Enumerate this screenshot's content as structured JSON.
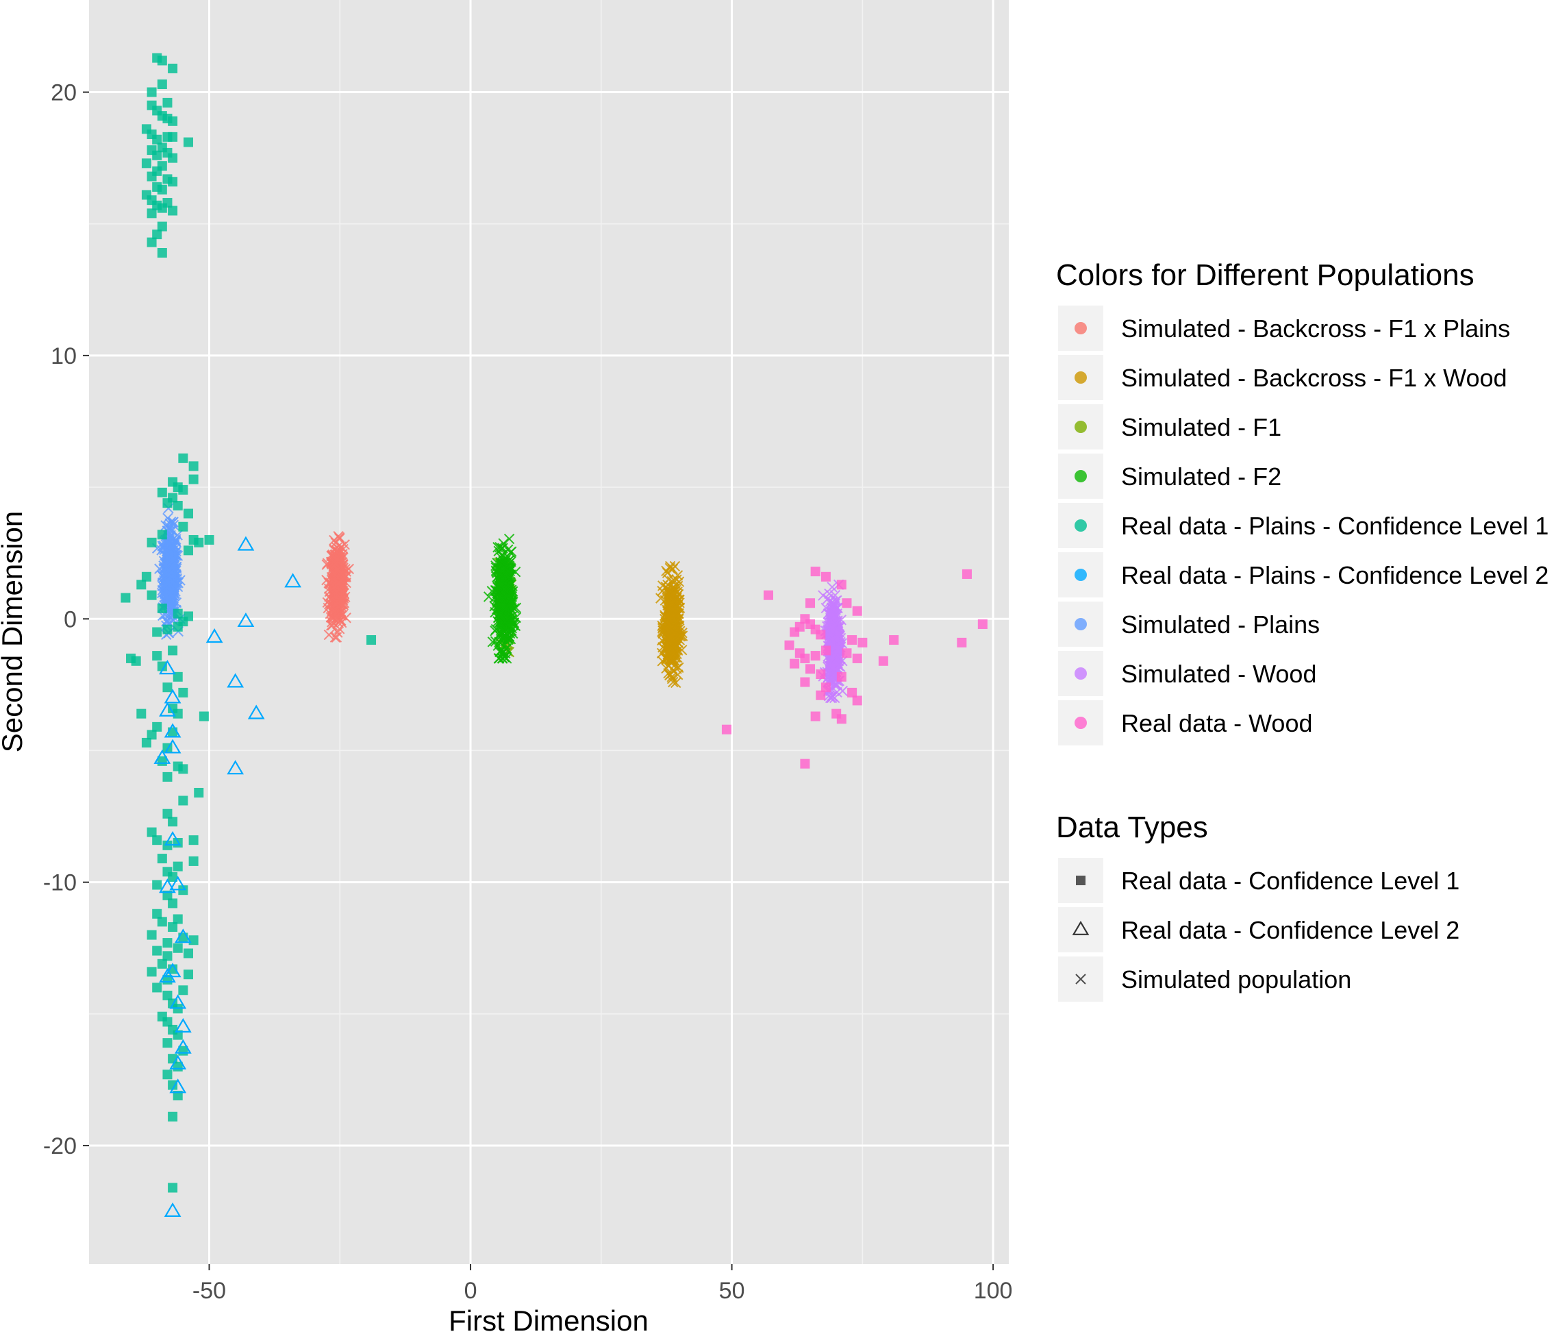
{
  "chart_data": {
    "type": "scatter",
    "xlabel": "First Dimension",
    "ylabel": "Second Dimension",
    "xlim": [
      -73,
      103
    ],
    "ylim": [
      -24.5,
      23.5
    ],
    "xticks": [
      -50,
      0,
      50,
      100
    ],
    "xtick_labels": [
      "-50",
      "0",
      "50",
      "100"
    ],
    "yticks": [
      -20,
      -10,
      0,
      10,
      20
    ],
    "ytick_labels": [
      "-20",
      "-10",
      "0",
      "10",
      "20"
    ],
    "grid": true,
    "legend_position": "right",
    "legends": {
      "color": {
        "title": "Colors for Different Populations",
        "entries": [
          {
            "label": "Simulated - Backcross - F1 x Plains",
            "color": "#F8766D"
          },
          {
            "label": "Simulated - Backcross - F1 x Wood",
            "color": "#CD9600"
          },
          {
            "label": "Simulated - F1",
            "color": "#7CAE00"
          },
          {
            "label": "Simulated - F2",
            "color": "#0CB702"
          },
          {
            "label": "Real data - Plains - Confidence Level 1",
            "color": "#00BE92"
          },
          {
            "label": "Real data - Plains - Confidence Level 2",
            "color": "#00A9FF"
          },
          {
            "label": "Simulated - Plains",
            "color": "#619CFF"
          },
          {
            "label": "Simulated - Wood",
            "color": "#C77CFF"
          },
          {
            "label": "Real data - Wood",
            "color": "#FF61CC"
          }
        ]
      },
      "shape": {
        "title": "Data Types",
        "entries": [
          {
            "label": "Real data - Confidence Level 1",
            "shape": "square"
          },
          {
            "label": "Real data - Confidence Level 2",
            "shape": "triangle"
          },
          {
            "label": "Simulated population",
            "shape": "x"
          }
        ]
      }
    },
    "series": [
      {
        "name": "Real data - Plains - Confidence Level 1",
        "color": "#00BE92",
        "shape": "square",
        "points": [
          [
            -60,
            21.3
          ],
          [
            -59,
            21.2
          ],
          [
            -57,
            20.9
          ],
          [
            -61,
            20.0
          ],
          [
            -59,
            20.3
          ],
          [
            -58,
            19.6
          ],
          [
            -61,
            19.5
          ],
          [
            -60,
            19.3
          ],
          [
            -59,
            19.1
          ],
          [
            -57,
            18.9
          ],
          [
            -58,
            19.0
          ],
          [
            -62,
            18.6
          ],
          [
            -61,
            18.4
          ],
          [
            -60,
            18.2
          ],
          [
            -58,
            18.3
          ],
          [
            -57,
            18.3
          ],
          [
            -54,
            18.1
          ],
          [
            -61,
            17.8
          ],
          [
            -60,
            17.6
          ],
          [
            -59,
            17.9
          ],
          [
            -58,
            17.7
          ],
          [
            -57,
            17.5
          ],
          [
            -62,
            17.3
          ],
          [
            -60,
            17.0
          ],
          [
            -59,
            17.2
          ],
          [
            -61,
            16.8
          ],
          [
            -58,
            16.7
          ],
          [
            -60,
            16.4
          ],
          [
            -59,
            16.3
          ],
          [
            -57,
            16.6
          ],
          [
            -62,
            16.1
          ],
          [
            -61,
            15.9
          ],
          [
            -60,
            15.7
          ],
          [
            -59,
            15.6
          ],
          [
            -57,
            15.5
          ],
          [
            -61,
            15.4
          ],
          [
            -58,
            15.8
          ],
          [
            -59,
            14.9
          ],
          [
            -60,
            14.6
          ],
          [
            -61,
            14.3
          ],
          [
            -59,
            13.9
          ],
          [
            -55,
            6.1
          ],
          [
            -53,
            5.8
          ],
          [
            -57,
            5.2
          ],
          [
            -56,
            5.0
          ],
          [
            -55,
            4.9
          ],
          [
            -59,
            4.8
          ],
          [
            -57,
            4.6
          ],
          [
            -58,
            4.4
          ],
          [
            -56,
            4.3
          ],
          [
            -53,
            5.3
          ],
          [
            -54,
            4.0
          ],
          [
            -55,
            3.5
          ],
          [
            -53,
            3.0
          ],
          [
            -52,
            2.9
          ],
          [
            -50,
            3.0
          ],
          [
            -54,
            2.6
          ],
          [
            -59,
            3.2
          ],
          [
            -61,
            2.9
          ],
          [
            -62,
            1.6
          ],
          [
            -63,
            1.3
          ],
          [
            -61,
            0.9
          ],
          [
            -66,
            0.8
          ],
          [
            -59,
            0.4
          ],
          [
            -56,
            0.2
          ],
          [
            -54,
            0.1
          ],
          [
            -55,
            -0.1
          ],
          [
            -56,
            -0.3
          ],
          [
            -58,
            -0.4
          ],
          [
            -60,
            -0.5
          ],
          [
            -65,
            -1.5
          ],
          [
            -64,
            -1.6
          ],
          [
            -60,
            -1.4
          ],
          [
            -57,
            -1.2
          ],
          [
            -59,
            -1.8
          ],
          [
            -56,
            -2.2
          ],
          [
            -58,
            -2.6
          ],
          [
            -55,
            -2.8
          ],
          [
            -57,
            -3.4
          ],
          [
            -56,
            -3.6
          ],
          [
            -63,
            -3.6
          ],
          [
            -51,
            -3.7
          ],
          [
            -60,
            -4.1
          ],
          [
            -61,
            -4.4
          ],
          [
            -62,
            -4.7
          ],
          [
            -57,
            -4.3
          ],
          [
            -58,
            -4.9
          ],
          [
            -59,
            -5.4
          ],
          [
            -56,
            -5.6
          ],
          [
            -55,
            -5.7
          ],
          [
            -58,
            -6.0
          ],
          [
            -52,
            -6.6
          ],
          [
            -55,
            -6.9
          ],
          [
            -58,
            -7.4
          ],
          [
            -57,
            -7.7
          ],
          [
            -61,
            -8.1
          ],
          [
            -60,
            -8.4
          ],
          [
            -58,
            -8.6
          ],
          [
            -56,
            -8.5
          ],
          [
            -53,
            -8.4
          ],
          [
            -59,
            -9.1
          ],
          [
            -56,
            -9.4
          ],
          [
            -58,
            -9.6
          ],
          [
            -57,
            -9.8
          ],
          [
            -53,
            -9.2
          ],
          [
            -60,
            -10.1
          ],
          [
            -58,
            -10.5
          ],
          [
            -55,
            -10.3
          ],
          [
            -57,
            -10.8
          ],
          [
            -60,
            -11.2
          ],
          [
            -59,
            -11.5
          ],
          [
            -57,
            -11.7
          ],
          [
            -56,
            -11.4
          ],
          [
            -61,
            -12.0
          ],
          [
            -58,
            -12.3
          ],
          [
            -55,
            -12.1
          ],
          [
            -53,
            -12.2
          ],
          [
            -60,
            -12.6
          ],
          [
            -58,
            -12.8
          ],
          [
            -56,
            -12.5
          ],
          [
            -54,
            -12.7
          ],
          [
            -59,
            -13.1
          ],
          [
            -57,
            -13.3
          ],
          [
            -54,
            -13.5
          ],
          [
            -61,
            -13.4
          ],
          [
            -58,
            -13.7
          ],
          [
            -60,
            -14.0
          ],
          [
            -58,
            -14.3
          ],
          [
            -55,
            -14.1
          ],
          [
            -57,
            -14.6
          ],
          [
            -56,
            -14.8
          ],
          [
            -59,
            -15.1
          ],
          [
            -58,
            -15.3
          ],
          [
            -57,
            -15.6
          ],
          [
            -56,
            -15.8
          ],
          [
            -58,
            -16.1
          ],
          [
            -55,
            -16.4
          ],
          [
            -57,
            -16.7
          ],
          [
            -56,
            -17.0
          ],
          [
            -58,
            -17.3
          ],
          [
            -57,
            -17.7
          ],
          [
            -56,
            -18.1
          ],
          [
            -57,
            -18.9
          ],
          [
            -57,
            -21.6
          ],
          [
            -19,
            -0.8
          ]
        ]
      },
      {
        "name": "Real data - Plains - Confidence Level 2",
        "color": "#00A9FF",
        "shape": "triangle",
        "points": [
          [
            -43,
            2.8
          ],
          [
            -34,
            1.4
          ],
          [
            -43,
            -0.1
          ],
          [
            -49,
            -0.7
          ],
          [
            -45,
            -2.4
          ],
          [
            -41,
            -3.6
          ],
          [
            -45,
            -5.7
          ],
          [
            -58,
            -1.9
          ],
          [
            -57,
            -3.0
          ],
          [
            -58,
            -3.5
          ],
          [
            -57,
            -4.3
          ],
          [
            -59,
            -5.3
          ],
          [
            -57,
            -4.9
          ],
          [
            -57,
            -8.4
          ],
          [
            -58,
            -10.2
          ],
          [
            -56,
            -10.1
          ],
          [
            -55,
            -12.1
          ],
          [
            -57,
            -13.4
          ],
          [
            -55,
            -15.5
          ],
          [
            -55,
            -16.3
          ],
          [
            -56,
            -16.9
          ],
          [
            -56,
            -17.8
          ],
          [
            -57,
            -22.5
          ],
          [
            -58,
            -13.6
          ],
          [
            -56,
            -14.6
          ]
        ]
      },
      {
        "name": "Simulated - Backcross - F1 x Plains",
        "color": "#F8766D",
        "shape": "x",
        "cloud": {
          "cx": -25.5,
          "cy": 1.3,
          "sx": 0.7,
          "sy": 0.75,
          "n": 380,
          "ymin": -0.7,
          "ymax": 3.3
        }
      },
      {
        "name": "Simulated - F1",
        "color": "#7CAE00",
        "shape": "x",
        "cloud": {
          "cx": 6.5,
          "cy": 0.4,
          "sx": 0.6,
          "sy": 0.9,
          "n": 30,
          "ymin": -2.1,
          "ymax": 3.0
        }
      },
      {
        "name": "Simulated - F2",
        "color": "#0CB702",
        "shape": "x",
        "cloud": {
          "cx": 6.5,
          "cy": 0.7,
          "sx": 0.8,
          "sy": 0.9,
          "n": 420,
          "ymin": -1.5,
          "ymax": 3.3
        }
      },
      {
        "name": "Simulated - Backcross - F1 x Wood",
        "color": "#CD9600",
        "shape": "x",
        "cloud": {
          "cx": 38.5,
          "cy": -0.3,
          "sx": 0.7,
          "sy": 0.85,
          "n": 400,
          "ymin": -3.0,
          "ymax": 2.0
        }
      },
      {
        "name": "Simulated - Plains",
        "color": "#619CFF",
        "shape": "x",
        "cloud": {
          "cx": -57.5,
          "cy": 1.7,
          "sx": 0.7,
          "sy": 0.85,
          "n": 400,
          "ymin": -0.6,
          "ymax": 4.2
        }
      },
      {
        "name": "Simulated - Wood",
        "color": "#C77CFF",
        "shape": "x",
        "cloud": {
          "cx": 69.5,
          "cy": -0.9,
          "sx": 0.6,
          "sy": 0.85,
          "n": 400,
          "ymin": -3.0,
          "ymax": 1.3
        }
      },
      {
        "name": "Real data - Wood",
        "color": "#FF61CC",
        "shape": "square",
        "points": [
          [
            66,
            1.8
          ],
          [
            68,
            1.6
          ],
          [
            71,
            1.3
          ],
          [
            57,
            0.9
          ],
          [
            65,
            0.6
          ],
          [
            72,
            0.6
          ],
          [
            74,
            0.3
          ],
          [
            64,
            0.0
          ],
          [
            63,
            -0.3
          ],
          [
            65,
            -0.2
          ],
          [
            66,
            -0.4
          ],
          [
            67,
            -0.6
          ],
          [
            62,
            -0.5
          ],
          [
            73,
            -0.8
          ],
          [
            75,
            -0.9
          ],
          [
            81,
            -0.8
          ],
          [
            61,
            -1.0
          ],
          [
            63,
            -1.3
          ],
          [
            64,
            -1.5
          ],
          [
            66,
            -1.4
          ],
          [
            68,
            -1.2
          ],
          [
            72,
            -1.3
          ],
          [
            74,
            -1.5
          ],
          [
            79,
            -1.6
          ],
          [
            62,
            -1.7
          ],
          [
            65,
            -1.9
          ],
          [
            67,
            -2.1
          ],
          [
            71,
            -2.2
          ],
          [
            64,
            -2.4
          ],
          [
            68,
            -2.6
          ],
          [
            73,
            -2.8
          ],
          [
            67,
            -2.9
          ],
          [
            74,
            -3.1
          ],
          [
            70,
            -3.6
          ],
          [
            66,
            -3.7
          ],
          [
            71,
            -3.8
          ],
          [
            49,
            -4.2
          ],
          [
            64,
            -5.5
          ],
          [
            95,
            1.7
          ],
          [
            98,
            -0.2
          ],
          [
            94,
            -0.9
          ]
        ]
      }
    ]
  }
}
